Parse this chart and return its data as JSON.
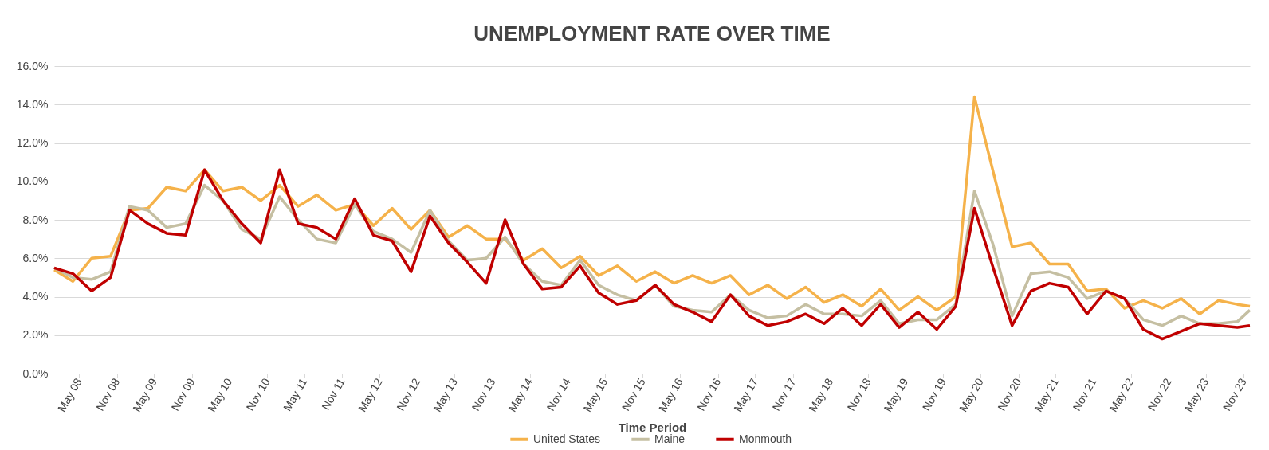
{
  "chart_data": {
    "type": "line",
    "title": "UNEMPLOYMENT RATE OVER TIME",
    "xlabel": "Time Period",
    "x": [
      "2008-01",
      "2008-04",
      "2008-07",
      "2008-10",
      "2009-01",
      "2009-04",
      "2009-07",
      "2009-10",
      "2010-01",
      "2010-04",
      "2010-07",
      "2010-10",
      "2011-01",
      "2011-04",
      "2011-07",
      "2011-10",
      "2012-01",
      "2012-04",
      "2012-07",
      "2012-10",
      "2013-01",
      "2013-04",
      "2013-07",
      "2013-10",
      "2014-01",
      "2014-04",
      "2014-07",
      "2014-10",
      "2015-01",
      "2015-04",
      "2015-07",
      "2015-10",
      "2016-01",
      "2016-04",
      "2016-07",
      "2016-10",
      "2017-01",
      "2017-04",
      "2017-07",
      "2017-10",
      "2018-01",
      "2018-04",
      "2018-07",
      "2018-10",
      "2019-01",
      "2019-04",
      "2019-07",
      "2019-10",
      "2020-01",
      "2020-04",
      "2020-07",
      "2020-10",
      "2021-01",
      "2021-04",
      "2021-07",
      "2021-10",
      "2022-01",
      "2022-04",
      "2022-07",
      "2022-10",
      "2023-01",
      "2023-04",
      "2023-07",
      "2023-10",
      "2023-12"
    ],
    "series": [
      {
        "name": "United States",
        "color": "#f5b24a",
        "values": [
          5.4,
          4.8,
          6.0,
          6.1,
          8.5,
          8.6,
          9.7,
          9.5,
          10.6,
          9.5,
          9.7,
          9.0,
          9.8,
          8.7,
          9.3,
          8.5,
          8.8,
          7.7,
          8.6,
          7.5,
          8.5,
          7.1,
          7.7,
          7.0,
          7.0,
          5.9,
          6.5,
          5.5,
          6.1,
          5.1,
          5.6,
          4.8,
          5.3,
          4.7,
          5.1,
          4.7,
          5.1,
          4.1,
          4.6,
          3.9,
          4.5,
          3.7,
          4.1,
          3.5,
          4.4,
          3.3,
          4.0,
          3.3,
          4.0,
          14.4,
          10.5,
          6.6,
          6.8,
          5.7,
          5.7,
          4.3,
          4.4,
          3.4,
          3.8,
          3.4,
          3.9,
          3.1,
          3.8,
          3.6,
          3.5
        ]
      },
      {
        "name": "Maine",
        "color": "#c5bfa2",
        "values": [
          5.5,
          5.0,
          4.9,
          5.3,
          8.7,
          8.5,
          7.6,
          7.8,
          9.8,
          9.0,
          7.5,
          7.0,
          9.2,
          8.0,
          7.0,
          6.8,
          8.8,
          7.4,
          7.0,
          6.3,
          8.5,
          6.9,
          5.9,
          6.0,
          7.1,
          5.7,
          4.8,
          4.6,
          5.9,
          4.6,
          4.1,
          3.8,
          4.6,
          3.5,
          3.3,
          3.2,
          4.1,
          3.3,
          2.9,
          3.0,
          3.6,
          3.1,
          3.1,
          3.0,
          3.8,
          2.6,
          2.8,
          2.8,
          3.6,
          9.5,
          6.7,
          3.0,
          5.2,
          5.3,
          5.0,
          3.9,
          4.3,
          3.9,
          2.8,
          2.5,
          3.0,
          2.6,
          2.6,
          2.7,
          3.3
        ]
      },
      {
        "name": "Monmouth",
        "color": "#c00000",
        "values": [
          5.5,
          5.2,
          4.3,
          5.0,
          8.5,
          7.8,
          7.3,
          7.2,
          10.6,
          9.0,
          7.8,
          6.8,
          10.6,
          7.8,
          7.6,
          7.0,
          9.1,
          7.2,
          6.9,
          5.3,
          8.2,
          6.8,
          5.8,
          4.7,
          8.0,
          5.7,
          4.4,
          4.5,
          5.6,
          4.2,
          3.6,
          3.8,
          4.6,
          3.6,
          3.2,
          2.7,
          4.1,
          3.0,
          2.5,
          2.7,
          3.1,
          2.6,
          3.4,
          2.5,
          3.6,
          2.4,
          3.2,
          2.3,
          3.5,
          8.6,
          5.5,
          2.5,
          4.3,
          4.7,
          4.5,
          3.1,
          4.3,
          3.9,
          2.3,
          1.8,
          2.2,
          2.6,
          2.5,
          2.4,
          2.5
        ]
      }
    ],
    "xlim": [
      "2008-01",
      "2023-12"
    ],
    "xticks": [
      {
        "value": "2008-05",
        "label": "May 08"
      },
      {
        "value": "2008-11",
        "label": "Nov 08"
      },
      {
        "value": "2009-05",
        "label": "May 09"
      },
      {
        "value": "2009-11",
        "label": "Nov 09"
      },
      {
        "value": "2010-05",
        "label": "May 10"
      },
      {
        "value": "2010-11",
        "label": "Nov 10"
      },
      {
        "value": "2011-05",
        "label": "May 11"
      },
      {
        "value": "2011-11",
        "label": "Nov 11"
      },
      {
        "value": "2012-05",
        "label": "May 12"
      },
      {
        "value": "2012-11",
        "label": "Nov 12"
      },
      {
        "value": "2013-05",
        "label": "May 13"
      },
      {
        "value": "2013-11",
        "label": "Nov 13"
      },
      {
        "value": "2014-05",
        "label": "May 14"
      },
      {
        "value": "2014-11",
        "label": "Nov 14"
      },
      {
        "value": "2015-05",
        "label": "May 15"
      },
      {
        "value": "2015-11",
        "label": "Nov 15"
      },
      {
        "value": "2016-05",
        "label": "May 16"
      },
      {
        "value": "2016-11",
        "label": "Nov 16"
      },
      {
        "value": "2017-05",
        "label": "May 17"
      },
      {
        "value": "2017-11",
        "label": "Nov 17"
      },
      {
        "value": "2018-05",
        "label": "May 18"
      },
      {
        "value": "2018-11",
        "label": "Nov 18"
      },
      {
        "value": "2019-05",
        "label": "May 19"
      },
      {
        "value": "2019-11",
        "label": "Nov 19"
      },
      {
        "value": "2020-05",
        "label": "May 20"
      },
      {
        "value": "2020-11",
        "label": "Nov 20"
      },
      {
        "value": "2021-05",
        "label": "May 21"
      },
      {
        "value": "2021-11",
        "label": "Nov 21"
      },
      {
        "value": "2022-05",
        "label": "May 22"
      },
      {
        "value": "2022-11",
        "label": "Nov 22"
      },
      {
        "value": "2023-05",
        "label": "May 23"
      },
      {
        "value": "2023-11",
        "label": "Nov 23"
      }
    ],
    "ylim": [
      0,
      16
    ],
    "yticks": [
      {
        "value": 0,
        "label": "0.0%"
      },
      {
        "value": 2,
        "label": "2.0%"
      },
      {
        "value": 4,
        "label": "4.0%"
      },
      {
        "value": 6,
        "label": "6.0%"
      },
      {
        "value": 8,
        "label": "8.0%"
      },
      {
        "value": 10,
        "label": "10.0%"
      },
      {
        "value": 12,
        "label": "12.0%"
      },
      {
        "value": 14,
        "label": "14.0%"
      },
      {
        "value": 16,
        "label": "16.0%"
      }
    ],
    "grid": "y",
    "legend": "bottom",
    "marker": "none",
    "line_style": "solid"
  }
}
